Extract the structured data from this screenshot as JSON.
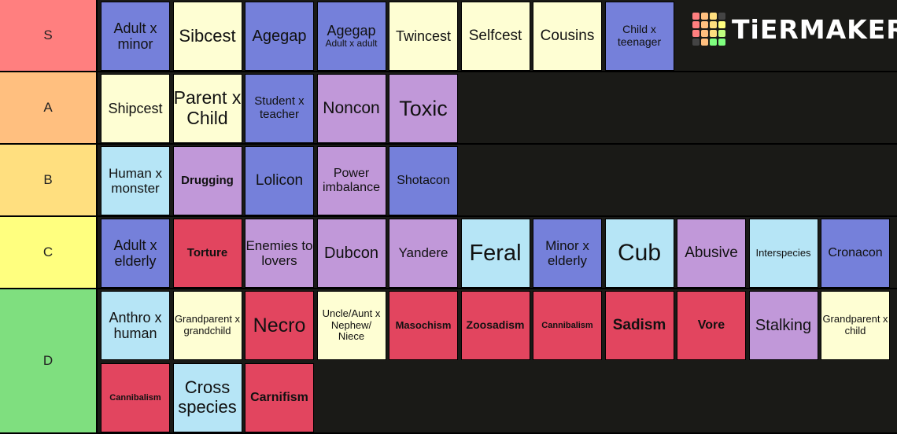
{
  "logo": {
    "text": "TiERMAKER",
    "grid_colors": [
      "#ff7f7f",
      "#ffbf7f",
      "#ffdf7f",
      "#444",
      "#ff7f7f",
      "#ffbf7f",
      "#ffdf7f",
      "#ffff7f",
      "#ff7f7f",
      "#ffbf7f",
      "#ffdf7f",
      "#bfff7f",
      "#444",
      "#ffbf7f",
      "#7fff7f",
      "#7fff7f"
    ]
  },
  "colors": {
    "blue": "#7580da",
    "cream": "#fefed3",
    "purple": "#c198d9",
    "lightblue": "#b6e5f6",
    "red": "#e2455f"
  },
  "tiers": [
    {
      "label": "S",
      "color": "#ff7f7f",
      "items": [
        {
          "text": "Adult x minor",
          "c": "blue",
          "fs": 18
        },
        {
          "text": "Sibcest",
          "c": "cream",
          "fs": 22
        },
        {
          "text": "Agegap",
          "c": "blue",
          "fs": 20
        },
        {
          "text": "Agegap",
          "sub": "Adult x adult",
          "c": "blue",
          "fs": 18
        },
        {
          "text": "Twincest",
          "c": "cream",
          "fs": 18
        },
        {
          "text": "Selfcest",
          "c": "cream",
          "fs": 19
        },
        {
          "text": "Cousins",
          "c": "cream",
          "fs": 19
        },
        {
          "text": "Child x teenager",
          "c": "blue",
          "fs": 14
        }
      ]
    },
    {
      "label": "A",
      "color": "#ffbf7f",
      "items": [
        {
          "text": "Shipcest",
          "c": "cream",
          "fs": 18
        },
        {
          "text": "Parent x Child",
          "c": "cream",
          "fs": 23
        },
        {
          "text": "Student x teacher",
          "c": "blue",
          "fs": 15
        },
        {
          "text": "Noncon",
          "c": "purple",
          "fs": 21
        },
        {
          "text": "Toxic",
          "c": "purple",
          "fs": 27
        }
      ]
    },
    {
      "label": "B",
      "color": "#ffdf7f",
      "items": [
        {
          "text": "Human x monster",
          "c": "lightblue",
          "fs": 17
        },
        {
          "text": "Drugging",
          "c": "purple",
          "fs": 15,
          "bold": true
        },
        {
          "text": "Lolicon",
          "c": "blue",
          "fs": 19
        },
        {
          "text": "Power imbalance",
          "c": "purple",
          "fs": 16
        },
        {
          "text": "Shotacon",
          "c": "blue",
          "fs": 16
        }
      ]
    },
    {
      "label": "C",
      "color": "#ffff7f",
      "items": [
        {
          "text": "Adult x elderly",
          "c": "blue",
          "fs": 18
        },
        {
          "text": "Torture",
          "c": "red",
          "fs": 15,
          "bold": true
        },
        {
          "text": "Enemies to lovers",
          "c": "purple",
          "fs": 17
        },
        {
          "text": "Dubcon",
          "c": "purple",
          "fs": 20
        },
        {
          "text": "Yandere",
          "c": "purple",
          "fs": 17
        },
        {
          "text": "Feral",
          "c": "lightblue",
          "fs": 29
        },
        {
          "text": "Minor x elderly",
          "c": "blue",
          "fs": 17
        },
        {
          "text": "Cub",
          "c": "lightblue",
          "fs": 30
        },
        {
          "text": "Abusive",
          "c": "purple",
          "fs": 19
        },
        {
          "text": "Interspecies",
          "c": "lightblue",
          "fs": 13
        },
        {
          "text": "Cronacon",
          "c": "blue",
          "fs": 16
        }
      ]
    },
    {
      "label": "D",
      "color": "#7fdf7f",
      "items": [
        {
          "text": "Anthro x human",
          "c": "lightblue",
          "fs": 18
        },
        {
          "text": "Grandparent x grandchild",
          "c": "cream",
          "fs": 13
        },
        {
          "text": "Necro",
          "c": "red",
          "fs": 25
        },
        {
          "text": "Uncle/Aunt x Nephew/ Niece",
          "c": "cream",
          "fs": 13
        },
        {
          "text": "Masochism",
          "c": "red",
          "fs": 13,
          "bold": true
        },
        {
          "text": "Zoosadism",
          "c": "red",
          "fs": 14,
          "bold": true
        },
        {
          "text": "Cannibalism",
          "c": "red",
          "fs": 11,
          "bold": true
        },
        {
          "text": "Sadism",
          "c": "red",
          "fs": 19,
          "bold": true
        },
        {
          "text": "Vore",
          "c": "red",
          "fs": 16,
          "bold": true
        },
        {
          "text": "Stalking",
          "c": "purple",
          "fs": 20
        },
        {
          "text": "Grandparent x child",
          "c": "cream",
          "fs": 13
        },
        {
          "text": "Cannibalism",
          "c": "red",
          "fs": 11,
          "bold": true
        },
        {
          "text": "Cross species",
          "c": "lightblue",
          "fs": 22
        },
        {
          "text": "Carnifism",
          "c": "red",
          "fs": 16,
          "bold": true
        }
      ]
    }
  ]
}
